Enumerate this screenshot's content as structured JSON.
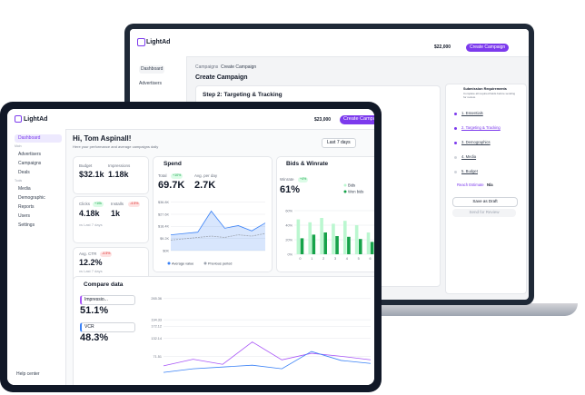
{
  "laptop": {
    "brand": "LightAd",
    "nav": [
      "Dashboard",
      "Advertisers"
    ],
    "balance": "$22,000",
    "cta": "Create Campaign",
    "breadcrumb_parent": "Campaigns",
    "breadcrumb_current": "Create Campaign",
    "title": "Create Campaign",
    "step_title": "Step 2: Targeting & Tracking",
    "requirements_title": "Submission Requirements",
    "requirements_note": "Complete all required fields before sending for review.",
    "steps": [
      "1. Essentials",
      "2. Targeting & Tracking",
      "3. Demographics",
      "4. Media",
      "5. Budget"
    ],
    "reach_label": "Reach Estimate",
    "reach_value": "N/a",
    "save": "Save as Draft",
    "send": "Send for Review"
  },
  "tablet": {
    "brand": "LightAd",
    "nav_groups": [
      {
        "items": [
          "Dashboard"
        ]
      },
      {
        "label": "Main",
        "items": [
          "Advertisers",
          "Campaigns",
          "Deals"
        ]
      },
      {
        "label": "Tools",
        "items": [
          "Media",
          "Demographic",
          "Reports",
          "Users",
          "Settings"
        ]
      }
    ],
    "help": "Help center",
    "balance": "$23,000",
    "cta": "Create Campaign",
    "greeting": "Hi, Tom Aspinall!",
    "subtitle": "Here your performance and average campaigns daily",
    "range": "Last 7 days",
    "budget_label": "Budget",
    "budget": "$32.1k",
    "impressions_label": "Impressions",
    "impressions": "1.18k",
    "clicks_label": "Clicks",
    "clicks_badge": "+10k",
    "clicks": "4.18k",
    "installs_label": "Installs",
    "installs_badge": "-4.5%",
    "installs": "1k",
    "compare_note": "vs Last 7 days",
    "ctr_label": "Avg. CTR",
    "ctr_badge": "-4.5%",
    "ctr": "12.2%",
    "ctr_note": "vs Last 7 days",
    "spend": {
      "title": "Spend",
      "total_label": "Total",
      "total_badge": "+10%",
      "total": "69.7K",
      "avg_label": "Avg. per day",
      "avg": "2.7K",
      "legend": [
        "Average value",
        "Previous period"
      ],
      "chart": {
        "type": "area",
        "ylim": [
          0,
          40
        ],
        "yticks": [
          {
            "value": 0,
            "label": "$0K"
          },
          {
            "value": 9.2,
            "label": "$9.2K"
          },
          {
            "value": 18.4,
            "label": "$18.4K"
          },
          {
            "value": 27.6,
            "label": "$27.6K"
          },
          {
            "value": 36.8,
            "label": "$36.8K"
          }
        ],
        "series": [
          {
            "name": "Average value",
            "color": "#3b82f6",
            "values": [
              12,
              13,
              14,
              30,
              17,
              19,
              15,
              21
            ]
          },
          {
            "name": "Previous period",
            "color": "#9ca3af",
            "values": [
              8,
              9,
              10,
              11,
              10,
              12,
              11,
              13
            ]
          }
        ]
      }
    },
    "bids": {
      "title": "Bids & Winrate",
      "winrate_label": "Winrate",
      "winrate_badge": "+4%",
      "winrate": "61%",
      "chart": {
        "type": "bar",
        "categories": [
          "0",
          "1",
          "2",
          "3",
          "4",
          "5",
          "6"
        ],
        "ylim": [
          0,
          60
        ],
        "yticks": [
          {
            "value": 0,
            "label": "0%"
          },
          {
            "value": 20,
            "label": "20%"
          },
          {
            "value": 40,
            "label": "40%"
          },
          {
            "value": 60,
            "label": "60%"
          }
        ],
        "series": [
          {
            "name": "Bids",
            "color": "#bbf7d0",
            "values": [
              48,
              44,
              50,
              42,
              46,
              40,
              30
            ]
          },
          {
            "name": "Won bids",
            "color": "#16a34a",
            "values": [
              22,
              27,
              30,
              25,
              24,
              21,
              17
            ]
          }
        ]
      }
    },
    "compare": {
      "title": "Compare data",
      "metrics": [
        {
          "name": "Impressio...",
          "value": "51.1%"
        },
        {
          "name": "VCR",
          "value": "48.3%"
        }
      ],
      "chart": {
        "type": "line",
        "ylim": [
          0,
          280
        ],
        "yticks": [
          71.51,
          132.14,
          172.12,
          194.33,
          265.36
        ],
        "series": [
          {
            "name": "Impressio...",
            "color": "#a855f7",
            "values": [
              40,
              62,
              45,
              120,
              60,
              82,
              72,
              60
            ]
          },
          {
            "name": "VCR",
            "color": "#3b82f6",
            "values": [
              18,
              30,
              36,
              42,
              30,
              88,
              58,
              48
            ]
          }
        ]
      }
    }
  }
}
